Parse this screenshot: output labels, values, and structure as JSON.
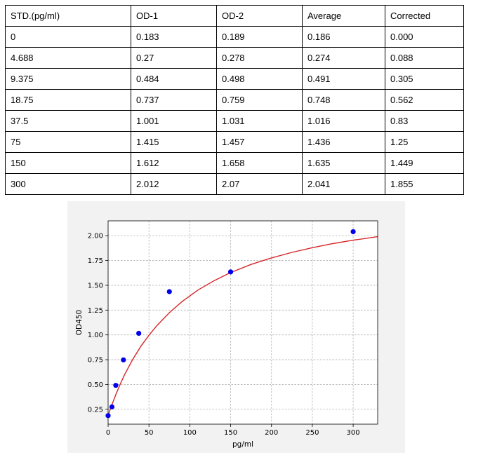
{
  "table": {
    "headers": [
      "STD.(pg/ml)",
      "OD-1",
      "OD-2",
      "Average",
      "Corrected"
    ],
    "rows": [
      [
        "0",
        "0.183",
        "0.189",
        "0.186",
        "0.000"
      ],
      [
        "4.688",
        "0.27",
        "0.278",
        "0.274",
        "0.088"
      ],
      [
        "9.375",
        "0.484",
        "0.498",
        "0.491",
        "0.305"
      ],
      [
        "18.75",
        "0.737",
        "0.759",
        "0.748",
        "0.562"
      ],
      [
        "37.5",
        "1.001",
        "1.031",
        "1.016",
        "0.83"
      ],
      [
        "75",
        "1.415",
        "1.457",
        "1.436",
        "1.25"
      ],
      [
        "150",
        "1.612",
        "1.658",
        "1.635",
        "1.449"
      ],
      [
        "300",
        "2.012",
        "2.07",
        "2.041",
        "1.855"
      ]
    ]
  },
  "chart_data": {
    "type": "scatter",
    "xlabel": "pg/ml",
    "ylabel": "OD450",
    "xlim": [
      0,
      330
    ],
    "ylim": [
      0.1,
      2.15
    ],
    "xticks": [
      0,
      50,
      100,
      150,
      200,
      250,
      300
    ],
    "yticks": [
      0.25,
      0.5,
      0.75,
      1.0,
      1.25,
      1.5,
      1.75,
      2.0
    ],
    "ytick_labels": [
      "0.25",
      "0.50",
      "0.75",
      "1.00",
      "1.25",
      "1.50",
      "1.75",
      "2.00"
    ],
    "grid": true,
    "points": {
      "x": [
        0,
        4.688,
        9.375,
        18.75,
        37.5,
        75,
        150,
        300
      ],
      "y": [
        0.186,
        0.274,
        0.491,
        0.748,
        1.016,
        1.436,
        1.635,
        2.041
      ],
      "color": "#0000ee"
    },
    "fit_curve": {
      "x": [
        0,
        2,
        5,
        10,
        15,
        20,
        30,
        40,
        50,
        60,
        75,
        90,
        110,
        130,
        150,
        175,
        200,
        225,
        250,
        275,
        300,
        330
      ],
      "y": [
        0.186,
        0.234,
        0.303,
        0.409,
        0.507,
        0.596,
        0.751,
        0.883,
        0.996,
        1.096,
        1.224,
        1.332,
        1.452,
        1.548,
        1.628,
        1.71,
        1.776,
        1.832,
        1.879,
        1.92,
        1.955,
        1.99
      ],
      "color": "#d62728"
    }
  }
}
